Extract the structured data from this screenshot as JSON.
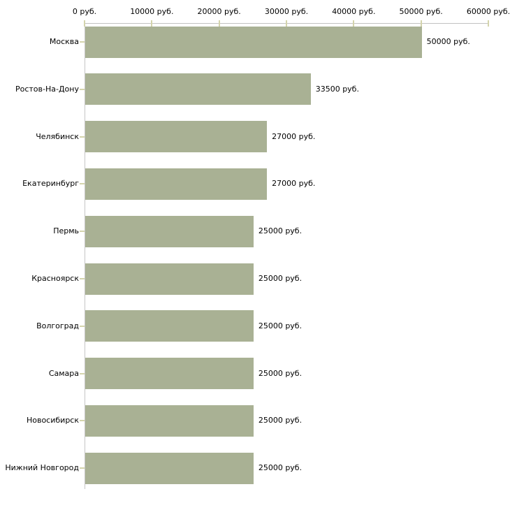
{
  "chart_data": {
    "type": "bar",
    "orientation": "horizontal",
    "title": "",
    "xlabel": "",
    "ylabel": "",
    "unit": "руб.",
    "categories": [
      "Москва",
      "Ростов-На-Дону",
      "Челябинск",
      "Екатеринбург",
      "Пермь",
      "Красноярск",
      "Волгоград",
      "Самара",
      "Новосибирск",
      "Нижний Новгород"
    ],
    "values": [
      50000,
      33500,
      27000,
      27000,
      25000,
      25000,
      25000,
      25000,
      25000,
      25000
    ],
    "value_labels": [
      "50000 руб.",
      "33500 руб.",
      "27000 руб.",
      "27000 руб.",
      "25000 руб.",
      "25000 руб.",
      "25000 руб.",
      "25000 руб.",
      "25000 руб.",
      "25000 руб."
    ],
    "x_ticks": [
      {
        "value": 0,
        "label": "0 руб."
      },
      {
        "value": 10000,
        "label": "10000 руб."
      },
      {
        "value": 20000,
        "label": "20000 руб."
      },
      {
        "value": 30000,
        "label": "30000 руб."
      },
      {
        "value": 40000,
        "label": "40000 руб."
      },
      {
        "value": 50000,
        "label": "50000 руб."
      },
      {
        "value": 60000,
        "label": "60000 руб."
      }
    ],
    "xlim": [
      0,
      60000
    ],
    "grid": false,
    "legend": false,
    "colors": {
      "bar": "#a9b194",
      "axis_h": "#c2c2c2",
      "axis_v": "#c6c6c6",
      "tick": "#d4d4ac",
      "text": "#000000",
      "background": "#ffffff"
    }
  }
}
